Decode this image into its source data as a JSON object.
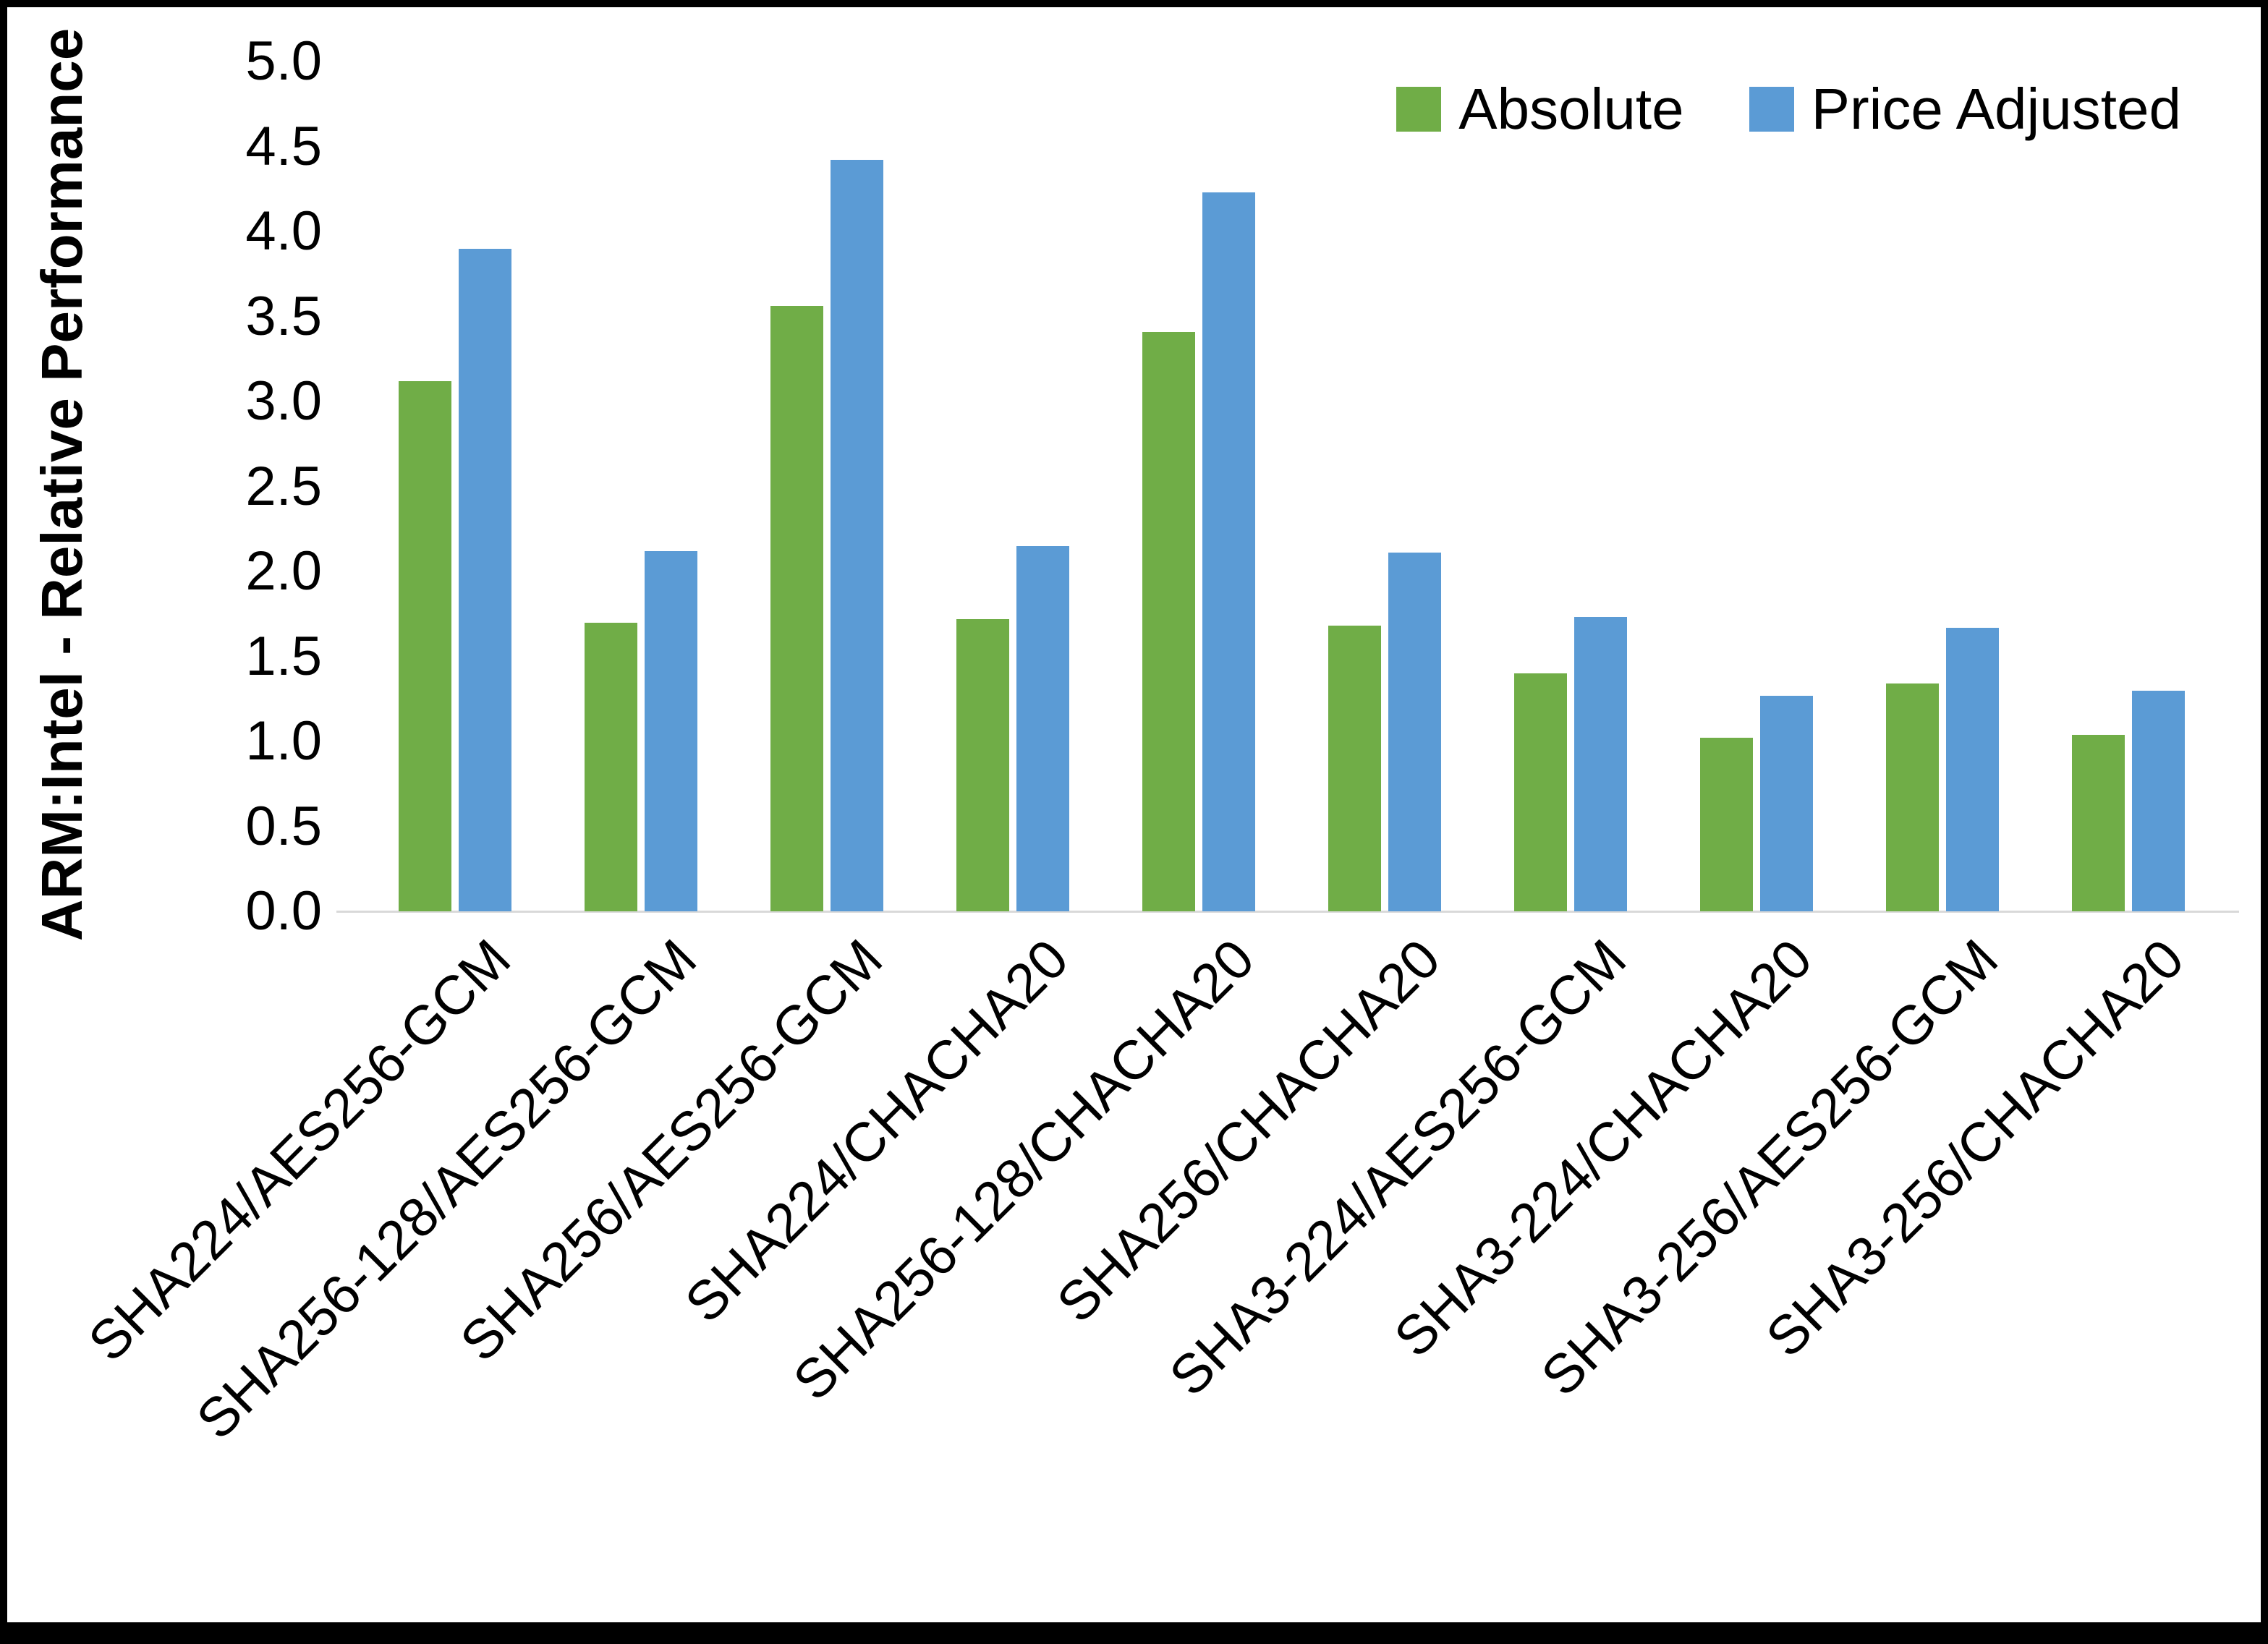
{
  "page": {
    "background": "#ffffff",
    "border_color": "#000000"
  },
  "chart_data": {
    "type": "bar",
    "title": "",
    "xlabel": "",
    "ylabel": "ARM:Intel - Relative Performance",
    "ylim": [
      0.0,
      5.0
    ],
    "y_tick_step": 0.5,
    "y_ticks": [
      "0.0",
      "0.5",
      "1.0",
      "1.5",
      "2.0",
      "2.5",
      "3.0",
      "3.5",
      "4.0",
      "4.5",
      "5.0"
    ],
    "grid": false,
    "legend_position": "top-right",
    "categories": [
      "SHA224/AES256-GCM",
      "SHA256-128/AES256-GCM",
      "SHA256/AES256-GCM",
      "SHA224/CHACHA20",
      "SHA256-128/CHACHA20",
      "SHA256/CHACHA20",
      "SHA3-224/AES256-GCM",
      "SHA3-224/CHACHA20",
      "SHA3-256/AES256-GCM",
      "SHA3-256/CHACHA20"
    ],
    "series": [
      {
        "name": "Absolute",
        "color": "#70AD47",
        "values": [
          3.12,
          1.7,
          3.56,
          1.72,
          3.41,
          1.68,
          1.4,
          1.02,
          1.34,
          1.04
        ]
      },
      {
        "name": "Price Adjusted",
        "color": "#5B9BD5",
        "values": [
          3.9,
          2.12,
          4.42,
          2.15,
          4.23,
          2.11,
          1.73,
          1.27,
          1.67,
          1.3
        ]
      }
    ]
  }
}
